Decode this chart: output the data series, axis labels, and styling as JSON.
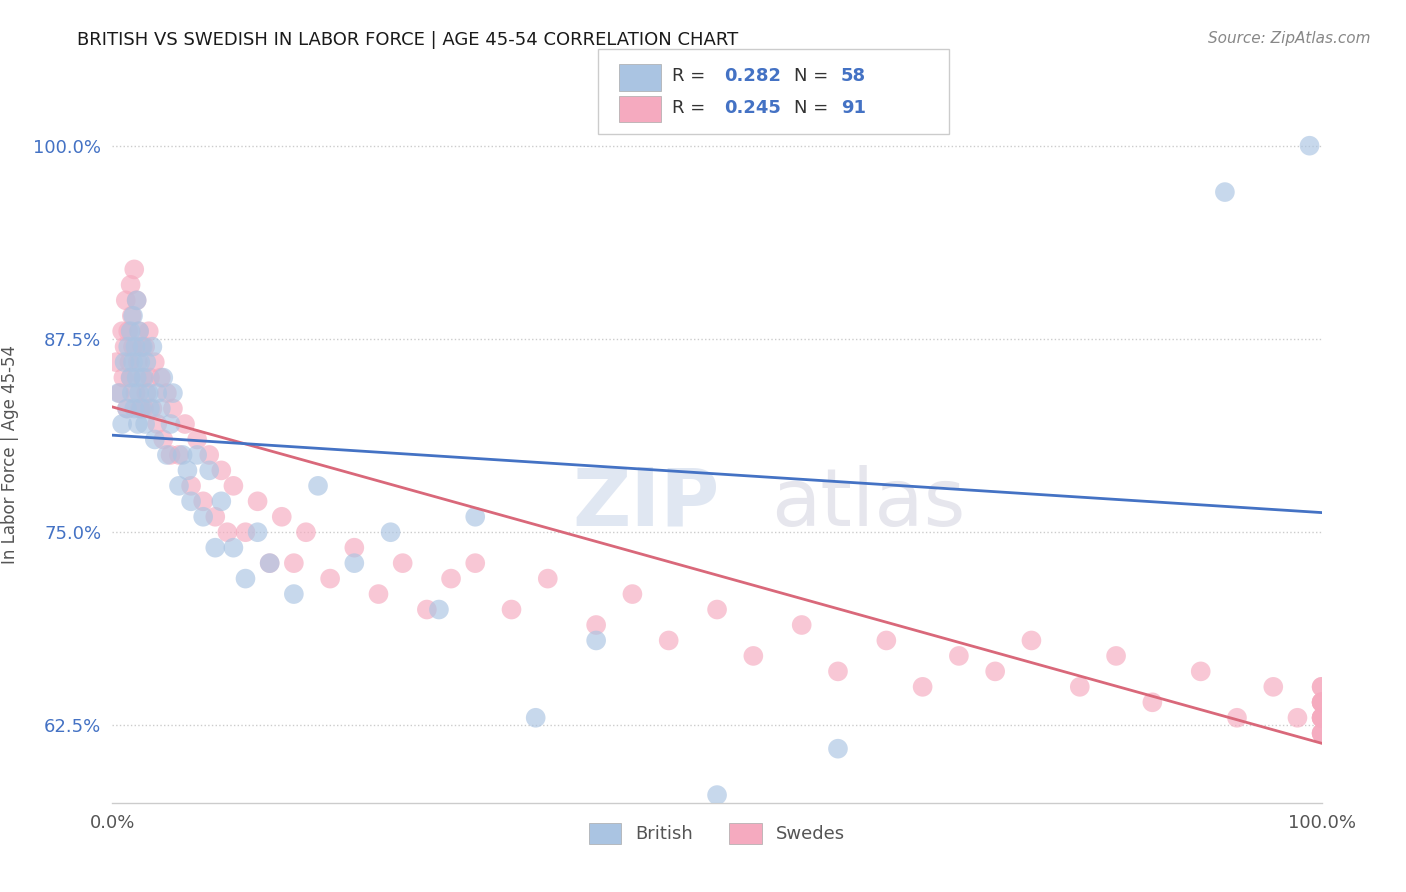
{
  "title": "BRITISH VS SWEDISH IN LABOR FORCE | AGE 45-54 CORRELATION CHART",
  "source_text": "Source: ZipAtlas.com",
  "ylabel": "In Labor Force | Age 45-54",
  "xlim": [
    0.0,
    1.0
  ],
  "ylim": [
    0.575,
    1.025
  ],
  "yticks": [
    0.625,
    0.75,
    0.875,
    1.0
  ],
  "ytick_labels": [
    "62.5%",
    "75.0%",
    "87.5%",
    "100.0%"
  ],
  "xticks": [
    0.0,
    1.0
  ],
  "xtick_labels": [
    "0.0%",
    "100.0%"
  ],
  "r_british": 0.282,
  "n_british": 58,
  "r_swedes": 0.245,
  "n_swedes": 91,
  "british_color": "#aac4e2",
  "swedes_color": "#f5aabf",
  "line_british_color": "#4472c4",
  "line_swedes_color": "#d9687a",
  "label_color": "#4472c4",
  "title_color": "#1a1a1a",
  "source_color": "#888888",
  "grid_color": "#cccccc",
  "british_x": [
    0.005,
    0.008,
    0.01,
    0.012,
    0.013,
    0.015,
    0.015,
    0.016,
    0.017,
    0.017,
    0.018,
    0.019,
    0.02,
    0.02,
    0.021,
    0.022,
    0.022,
    0.023,
    0.024,
    0.025,
    0.026,
    0.027,
    0.028,
    0.03,
    0.031,
    0.033,
    0.035,
    0.037,
    0.04,
    0.042,
    0.045,
    0.048,
    0.05,
    0.055,
    0.058,
    0.062,
    0.065,
    0.07,
    0.075,
    0.08,
    0.085,
    0.09,
    0.1,
    0.11,
    0.12,
    0.13,
    0.15,
    0.17,
    0.2,
    0.23,
    0.27,
    0.3,
    0.35,
    0.4,
    0.5,
    0.6,
    0.92,
    0.99
  ],
  "british_y": [
    0.84,
    0.82,
    0.86,
    0.83,
    0.87,
    0.85,
    0.88,
    0.84,
    0.86,
    0.89,
    0.83,
    0.87,
    0.85,
    0.9,
    0.82,
    0.88,
    0.84,
    0.86,
    0.83,
    0.87,
    0.85,
    0.82,
    0.86,
    0.84,
    0.83,
    0.87,
    0.81,
    0.84,
    0.83,
    0.85,
    0.8,
    0.82,
    0.84,
    0.78,
    0.8,
    0.79,
    0.77,
    0.8,
    0.76,
    0.79,
    0.74,
    0.77,
    0.74,
    0.72,
    0.75,
    0.73,
    0.71,
    0.78,
    0.73,
    0.75,
    0.7,
    0.76,
    0.63,
    0.68,
    0.58,
    0.61,
    0.97,
    1.0
  ],
  "swedes_x": [
    0.003,
    0.006,
    0.008,
    0.009,
    0.01,
    0.011,
    0.012,
    0.013,
    0.014,
    0.015,
    0.015,
    0.016,
    0.017,
    0.018,
    0.019,
    0.02,
    0.021,
    0.022,
    0.023,
    0.024,
    0.025,
    0.026,
    0.027,
    0.028,
    0.03,
    0.031,
    0.033,
    0.035,
    0.037,
    0.04,
    0.042,
    0.045,
    0.048,
    0.05,
    0.055,
    0.06,
    0.065,
    0.07,
    0.075,
    0.08,
    0.085,
    0.09,
    0.095,
    0.1,
    0.11,
    0.12,
    0.13,
    0.14,
    0.15,
    0.16,
    0.18,
    0.2,
    0.22,
    0.24,
    0.26,
    0.28,
    0.3,
    0.33,
    0.36,
    0.4,
    0.43,
    0.46,
    0.5,
    0.53,
    0.57,
    0.6,
    0.64,
    0.67,
    0.7,
    0.73,
    0.76,
    0.8,
    0.83,
    0.86,
    0.9,
    0.93,
    0.96,
    0.98,
    1.0,
    1.0,
    1.0,
    1.0,
    1.0,
    1.0,
    1.0,
    1.0,
    1.0,
    1.0,
    1.0,
    1.0,
    1.0
  ],
  "swedes_y": [
    0.86,
    0.84,
    0.88,
    0.85,
    0.87,
    0.9,
    0.83,
    0.88,
    0.86,
    0.91,
    0.85,
    0.89,
    0.87,
    0.92,
    0.84,
    0.9,
    0.86,
    0.88,
    0.83,
    0.87,
    0.85,
    0.83,
    0.87,
    0.84,
    0.88,
    0.85,
    0.83,
    0.86,
    0.82,
    0.85,
    0.81,
    0.84,
    0.8,
    0.83,
    0.8,
    0.82,
    0.78,
    0.81,
    0.77,
    0.8,
    0.76,
    0.79,
    0.75,
    0.78,
    0.75,
    0.77,
    0.73,
    0.76,
    0.73,
    0.75,
    0.72,
    0.74,
    0.71,
    0.73,
    0.7,
    0.72,
    0.73,
    0.7,
    0.72,
    0.69,
    0.71,
    0.68,
    0.7,
    0.67,
    0.69,
    0.66,
    0.68,
    0.65,
    0.67,
    0.66,
    0.68,
    0.65,
    0.67,
    0.64,
    0.66,
    0.63,
    0.65,
    0.63,
    0.64,
    0.63,
    0.65,
    0.62,
    0.64,
    0.63,
    0.65,
    0.62,
    0.64,
    0.63,
    0.62,
    0.64,
    0.63
  ]
}
